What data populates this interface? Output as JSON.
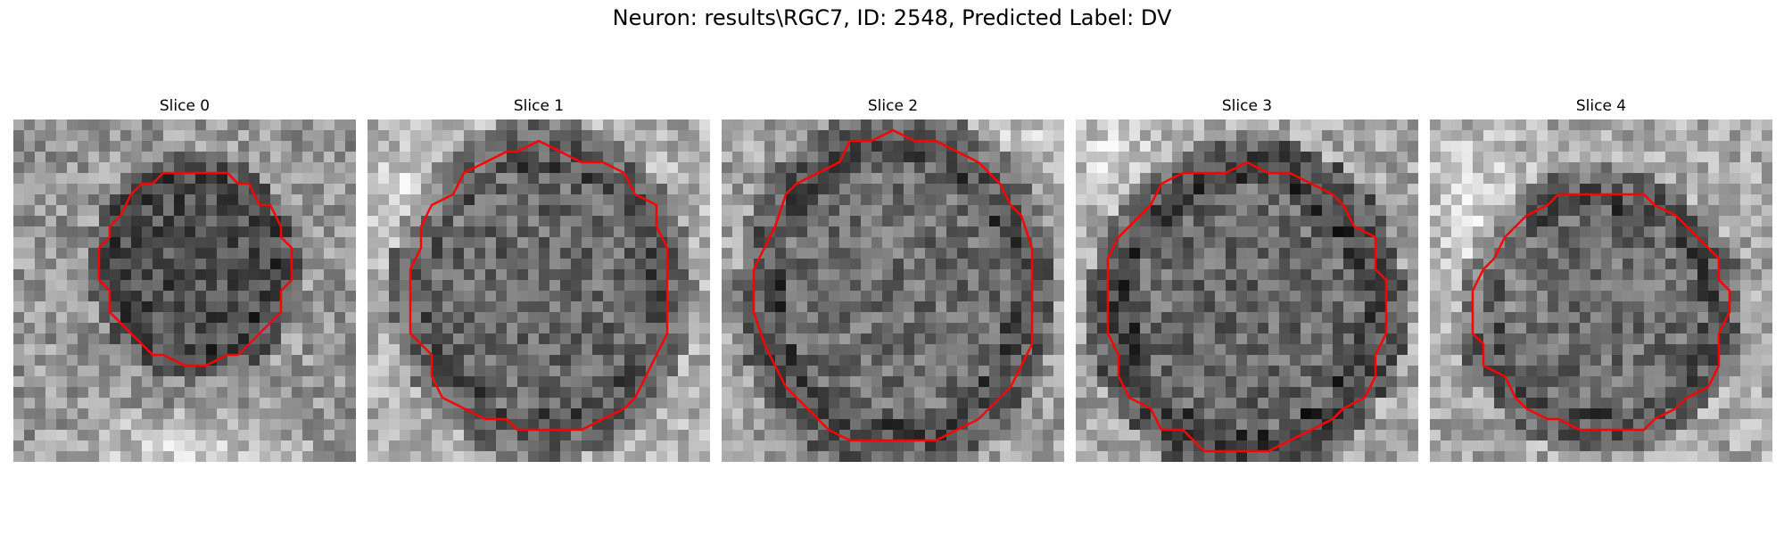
{
  "figure": {
    "title": "Neuron: results\\RGC7, ID: 2548, Predicted Label: DV"
  },
  "panels": [
    {
      "title": "Slice 0",
      "image_description": "grayscale noisy patch with dark roughly circular cell body outlined by red contour"
    },
    {
      "title": "Slice 1",
      "image_description": "grayscale noisy patch with dark roughly circular cell body outlined by red contour"
    },
    {
      "title": "Slice 2",
      "image_description": "grayscale noisy patch with dark roughly circular cell body outlined by red contour"
    },
    {
      "title": "Slice 3",
      "image_description": "grayscale noisy patch with dark roughly circular cell body outlined by red contour"
    },
    {
      "title": "Slice 4",
      "image_description": "grayscale noisy patch with dark roughly circular cell body outlined by red contour"
    }
  ],
  "colors": {
    "contour": "#ff0000",
    "background": "#ffffff"
  }
}
